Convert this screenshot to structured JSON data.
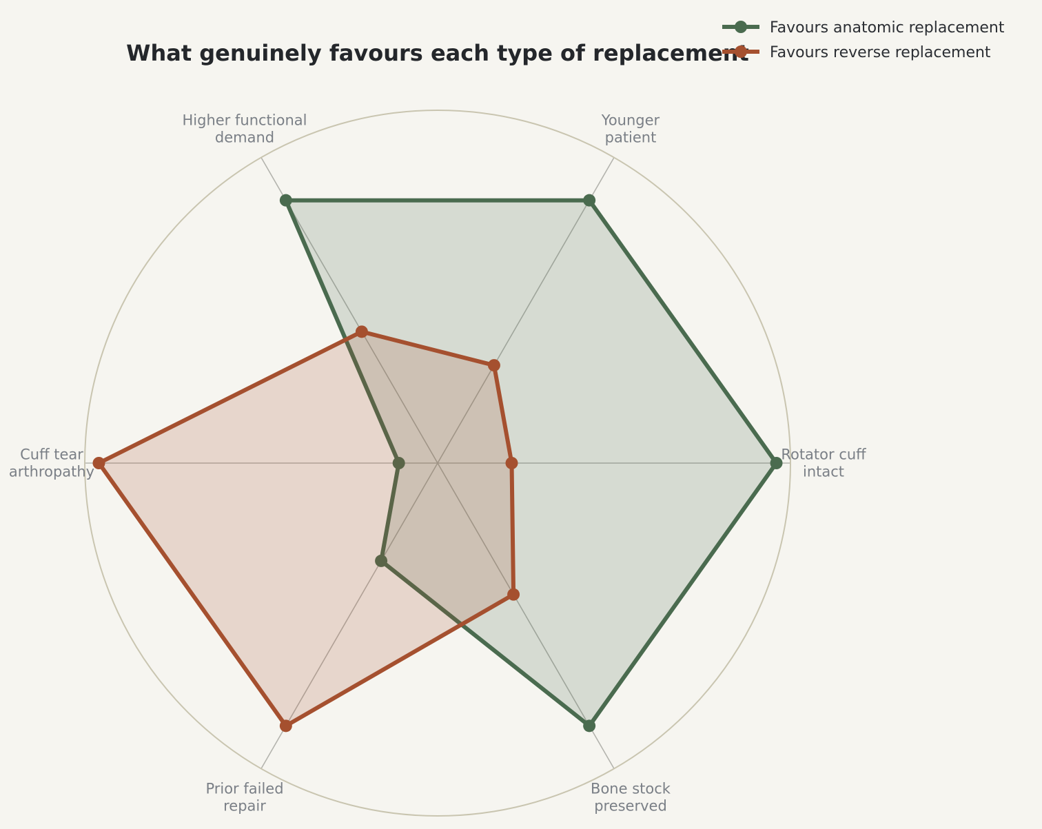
{
  "chart_data": {
    "type": "radar",
    "title": "What genuinely favours each type of replacement",
    "axes": [
      [
        "Rotator cuff",
        "intact"
      ],
      [
        "Younger",
        "patient"
      ],
      [
        "Higher functional",
        "demand"
      ],
      [
        "Cuff tear",
        "arthropathy"
      ],
      [
        "Prior failed",
        "repair"
      ],
      [
        "Bone stock",
        "preserved"
      ]
    ],
    "rlim": [
      0,
      1
    ],
    "grid": true,
    "legend_position": "top-right",
    "series": [
      {
        "name": "Favours anatomic replacement",
        "color": "#4a6b4f",
        "values": [
          0.96,
          0.86,
          0.86,
          0.11,
          0.32,
          0.86
        ]
      },
      {
        "name": "Favours reverse replacement",
        "color": "#a5502f",
        "values": [
          0.21,
          0.32,
          0.43,
          0.96,
          0.86,
          0.43
        ]
      }
    ]
  }
}
